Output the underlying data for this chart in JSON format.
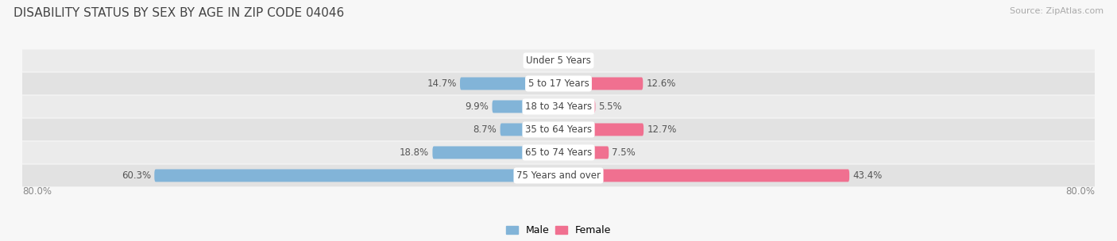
{
  "title": "Disability Status by Sex by Age in Zip Code 04046",
  "source": "Source: ZipAtlas.com",
  "categories": [
    "Under 5 Years",
    "5 to 17 Years",
    "18 to 34 Years",
    "35 to 64 Years",
    "65 to 74 Years",
    "75 Years and over"
  ],
  "male_values": [
    0.0,
    14.7,
    9.9,
    8.7,
    18.8,
    60.3
  ],
  "female_values": [
    0.0,
    12.6,
    5.5,
    12.7,
    7.5,
    43.4
  ],
  "male_color": "#82b4d8",
  "female_color": "#f07090",
  "row_colors": [
    "#ebebeb",
    "#e2e2e2"
  ],
  "fig_bg": "#f7f7f7",
  "xlim": 80.0,
  "legend_male": "Male",
  "legend_female": "Female",
  "title_fontsize": 11,
  "source_fontsize": 8,
  "bar_height": 0.55,
  "value_fontsize": 8.5,
  "cat_fontsize": 8.5
}
